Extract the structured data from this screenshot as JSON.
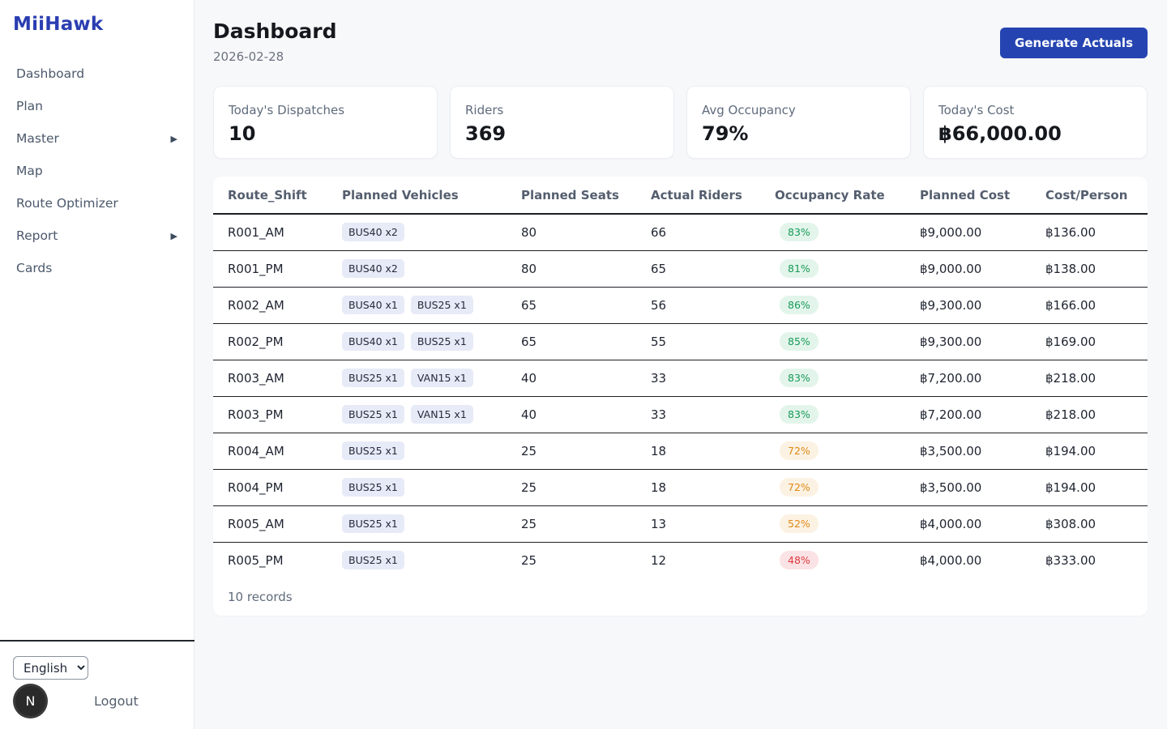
{
  "sidebar": {
    "logo": "MiiHawk",
    "items": [
      {
        "label": "Dashboard",
        "has_submenu": false
      },
      {
        "label": "Plan",
        "has_submenu": false
      },
      {
        "label": "Master",
        "has_submenu": true
      },
      {
        "label": "Map",
        "has_submenu": false
      },
      {
        "label": "Route Optimizer",
        "has_submenu": false
      },
      {
        "label": "Report",
        "has_submenu": true
      },
      {
        "label": "Cards",
        "has_submenu": false
      }
    ],
    "language_selected": "English",
    "avatar_initial": "N",
    "logout_label": "Logout"
  },
  "header": {
    "title": "Dashboard",
    "date": "2026-02-28",
    "generate_button": "Generate Actuals"
  },
  "stats": [
    {
      "label": "Today's Dispatches",
      "value": "10"
    },
    {
      "label": "Riders",
      "value": "369"
    },
    {
      "label": "Avg Occupancy",
      "value": "79%"
    },
    {
      "label": "Today's Cost",
      "value": "฿66,000.00"
    }
  ],
  "table": {
    "columns": [
      "Route_Shift",
      "Planned Vehicles",
      "Planned Seats",
      "Actual Riders",
      "Occupancy Rate",
      "Planned Cost",
      "Cost/Person"
    ],
    "rows": [
      {
        "route_shift": "R001_AM",
        "vehicles": [
          "BUS40 x2"
        ],
        "planned_seats": "80",
        "actual_riders": "66",
        "occupancy": "83%",
        "occupancy_status": "green",
        "planned_cost": "฿9,000.00",
        "cost_per_person": "฿136.00"
      },
      {
        "route_shift": "R001_PM",
        "vehicles": [
          "BUS40 x2"
        ],
        "planned_seats": "80",
        "actual_riders": "65",
        "occupancy": "81%",
        "occupancy_status": "green",
        "planned_cost": "฿9,000.00",
        "cost_per_person": "฿138.00"
      },
      {
        "route_shift": "R002_AM",
        "vehicles": [
          "BUS40 x1",
          "BUS25 x1"
        ],
        "planned_seats": "65",
        "actual_riders": "56",
        "occupancy": "86%",
        "occupancy_status": "green",
        "planned_cost": "฿9,300.00",
        "cost_per_person": "฿166.00"
      },
      {
        "route_shift": "R002_PM",
        "vehicles": [
          "BUS40 x1",
          "BUS25 x1"
        ],
        "planned_seats": "65",
        "actual_riders": "55",
        "occupancy": "85%",
        "occupancy_status": "green",
        "planned_cost": "฿9,300.00",
        "cost_per_person": "฿169.00"
      },
      {
        "route_shift": "R003_AM",
        "vehicles": [
          "BUS25 x1",
          "VAN15 x1"
        ],
        "planned_seats": "40",
        "actual_riders": "33",
        "occupancy": "83%",
        "occupancy_status": "green",
        "planned_cost": "฿7,200.00",
        "cost_per_person": "฿218.00"
      },
      {
        "route_shift": "R003_PM",
        "vehicles": [
          "BUS25 x1",
          "VAN15 x1"
        ],
        "planned_seats": "40",
        "actual_riders": "33",
        "occupancy": "83%",
        "occupancy_status": "green",
        "planned_cost": "฿7,200.00",
        "cost_per_person": "฿218.00"
      },
      {
        "route_shift": "R004_AM",
        "vehicles": [
          "BUS25 x1"
        ],
        "planned_seats": "25",
        "actual_riders": "18",
        "occupancy": "72%",
        "occupancy_status": "orange",
        "planned_cost": "฿3,500.00",
        "cost_per_person": "฿194.00"
      },
      {
        "route_shift": "R004_PM",
        "vehicles": [
          "BUS25 x1"
        ],
        "planned_seats": "25",
        "actual_riders": "18",
        "occupancy": "72%",
        "occupancy_status": "orange",
        "planned_cost": "฿3,500.00",
        "cost_per_person": "฿194.00"
      },
      {
        "route_shift": "R005_AM",
        "vehicles": [
          "BUS25 x1"
        ],
        "planned_seats": "25",
        "actual_riders": "13",
        "occupancy": "52%",
        "occupancy_status": "orange",
        "planned_cost": "฿4,000.00",
        "cost_per_person": "฿308.00"
      },
      {
        "route_shift": "R005_PM",
        "vehicles": [
          "BUS25 x1"
        ],
        "planned_seats": "25",
        "actual_riders": "12",
        "occupancy": "48%",
        "occupancy_status": "red",
        "planned_cost": "฿4,000.00",
        "cost_per_person": "฿333.00"
      }
    ],
    "footer": "10 records"
  },
  "colors": {
    "accent_blue": "#2544b1",
    "logo_blue": "#2a3eb1",
    "occupancy_green_bg": "#e3f5eb",
    "occupancy_green_text": "#189a58",
    "occupancy_orange_bg": "#fcf2e3",
    "occupancy_orange_text": "#df8a16",
    "occupancy_red_bg": "#fbe3e5",
    "occupancy_red_text": "#dd3a3f",
    "vehicle_badge_bg": "#e7eaf7",
    "page_background": "#f7f8fa"
  }
}
